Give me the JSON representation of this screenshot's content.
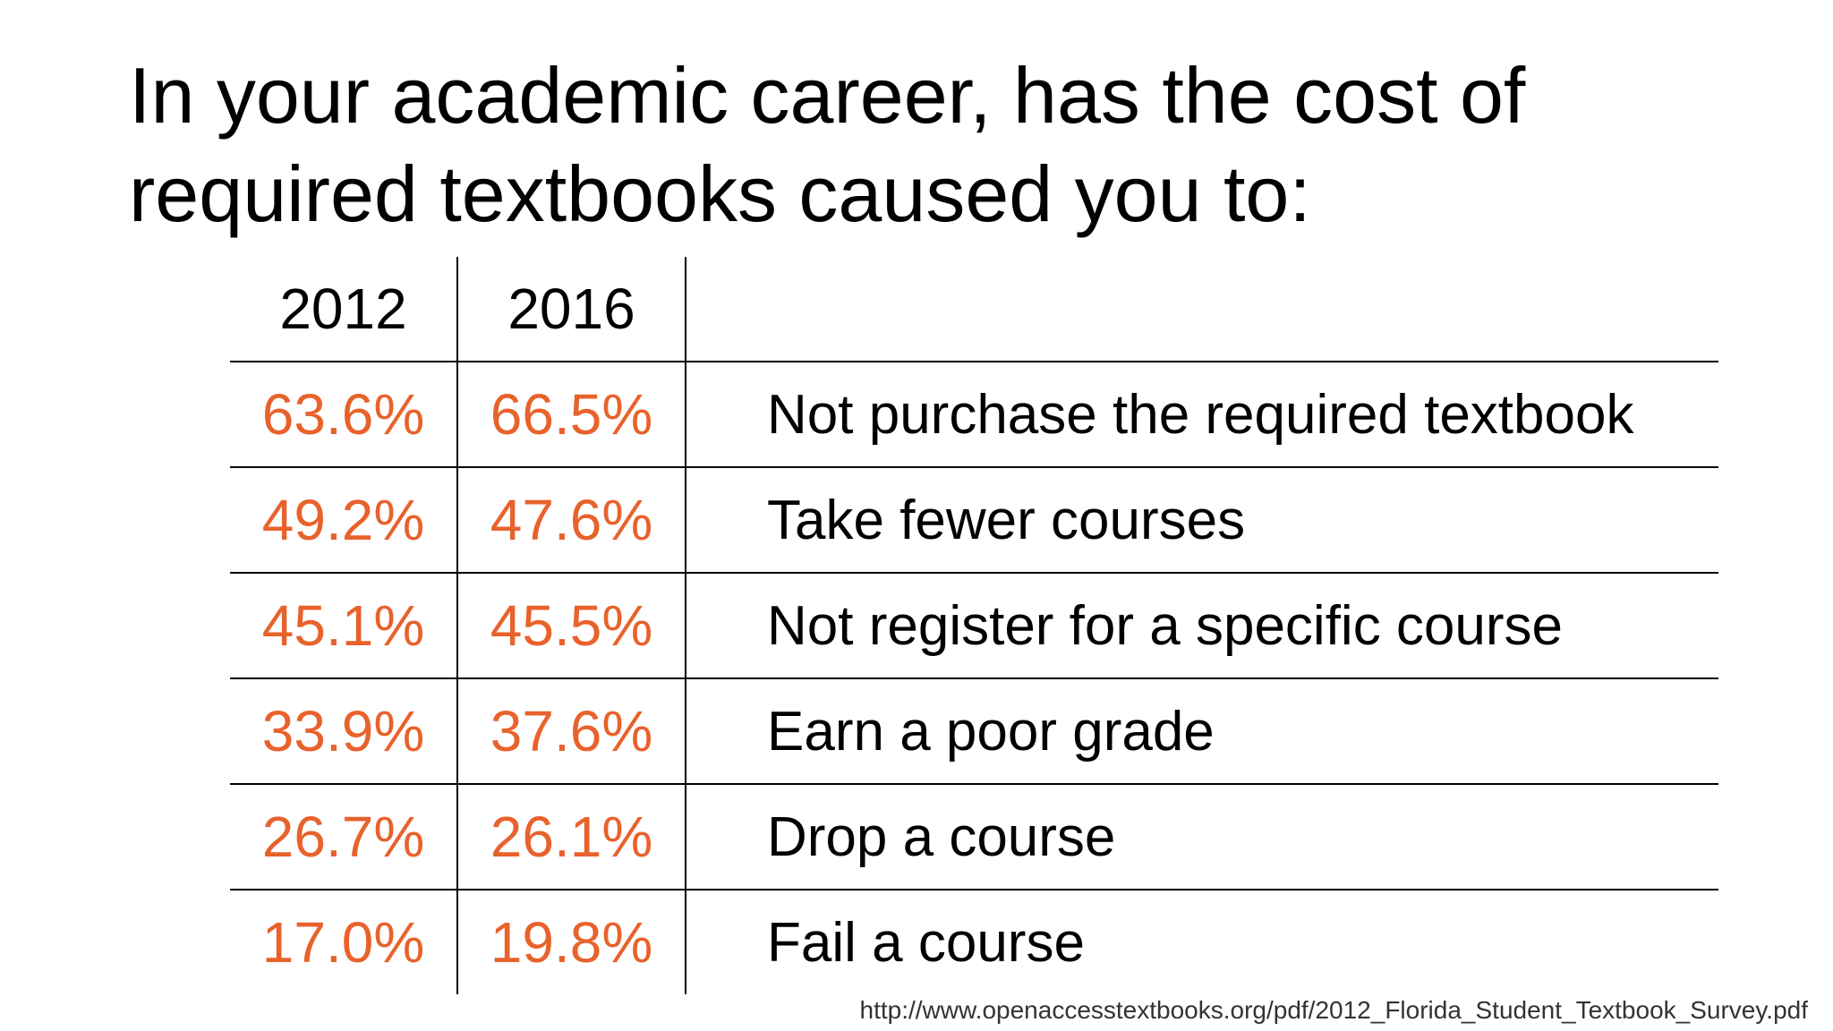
{
  "title": "In your academic career, has the cost of required textbooks caused you to:",
  "colors": {
    "text": "#000000",
    "percent": "#e8622c",
    "rule": "#000000"
  },
  "table": {
    "headers": [
      "2012",
      "2016",
      ""
    ],
    "rows": [
      {
        "y2012": "63.6%",
        "y2016": "66.5%",
        "outcome": "Not purchase the required textbook"
      },
      {
        "y2012": "49.2%",
        "y2016": "47.6%",
        "outcome": "Take fewer courses"
      },
      {
        "y2012": "45.1%",
        "y2016": "45.5%",
        "outcome": "Not register for a specific course"
      },
      {
        "y2012": "33.9%",
        "y2016": "37.6%",
        "outcome": "Earn a poor grade"
      },
      {
        "y2012": "26.7%",
        "y2016": "26.1%",
        "outcome": "Drop a course"
      },
      {
        "y2012": "17.0%",
        "y2016": "19.8%",
        "outcome": "Fail a course"
      }
    ]
  },
  "source": "http://www.openaccesstextbooks.org/pdf/2012_Florida_Student_Textbook_Survey.pdf"
}
